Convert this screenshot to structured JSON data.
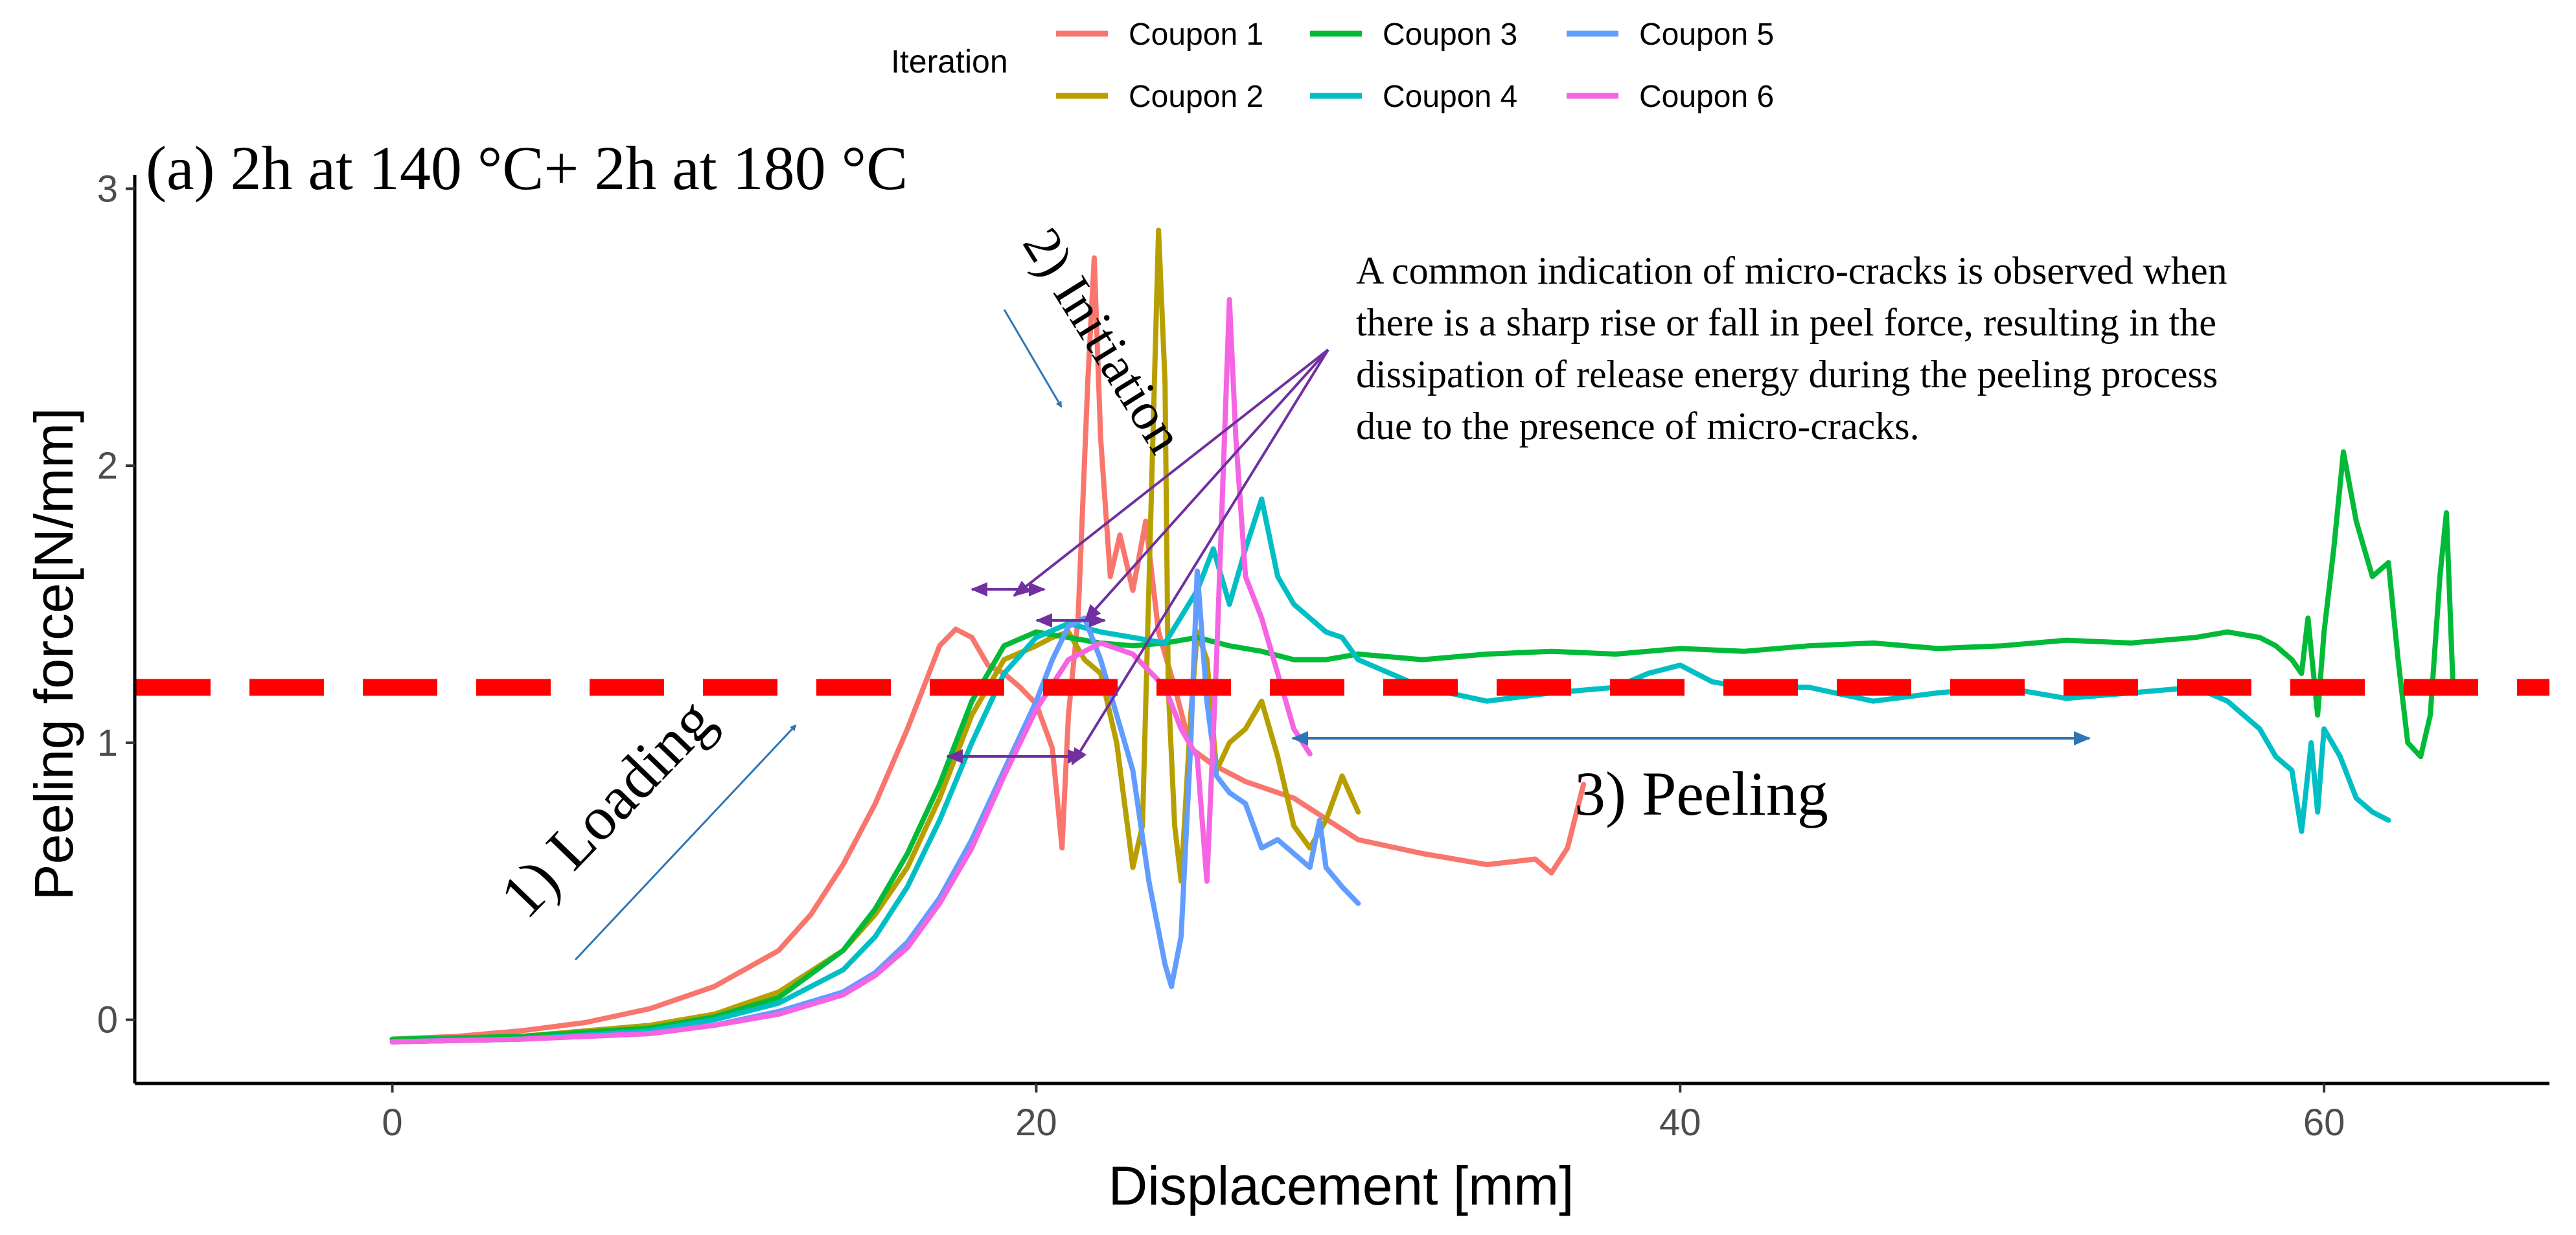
{
  "chart_data": {
    "type": "line",
    "panel_title": "(a) 2h at 140 °C+ 2h at 180 °C",
    "xlabel": "Displacement [mm]",
    "ylabel": "Peeling force[N/mm]",
    "xlim": [
      -8,
      67
    ],
    "ylim": [
      -0.23,
      3.05
    ],
    "xticks": [
      0,
      20,
      40,
      60
    ],
    "yticks": [
      0,
      1,
      2,
      3
    ],
    "grid": false,
    "legend": {
      "title": "Iteration",
      "position": "top",
      "entries": [
        "Coupon 1",
        "Coupon 2",
        "Coupon 3",
        "Coupon 4",
        "Coupon 5",
        "Coupon 6"
      ]
    },
    "reference_line": {
      "y": 1.2,
      "style": "dashed",
      "color": "#ff0000"
    },
    "series": [
      {
        "name": "Coupon 1",
        "color": "#F8766D",
        "x": [
          0,
          2,
          4,
          6,
          8,
          10,
          12,
          13,
          14,
          15,
          16,
          16.5,
          17,
          17.5,
          18,
          18.5,
          19,
          19.5,
          20,
          20.5,
          20.8,
          21,
          21.3,
          21.6,
          21.8,
          22,
          22.3,
          22.6,
          23,
          23.4,
          23.8,
          24.3,
          24.8,
          25.5,
          26.5,
          28,
          30,
          32,
          34,
          35.5,
          36,
          36.5,
          37
        ],
        "y": [
          -0.07,
          -0.06,
          -0.04,
          -0.01,
          0.04,
          0.12,
          0.25,
          0.38,
          0.56,
          0.78,
          1.05,
          1.2,
          1.35,
          1.41,
          1.38,
          1.28,
          1.25,
          1.2,
          1.14,
          0.98,
          0.62,
          1.1,
          1.45,
          2.3,
          2.75,
          2.1,
          1.6,
          1.75,
          1.55,
          1.8,
          1.4,
          1.2,
          0.98,
          0.92,
          0.86,
          0.8,
          0.65,
          0.6,
          0.56,
          0.58,
          0.53,
          0.62,
          0.85
        ]
      },
      {
        "name": "Coupon 2",
        "color": "#B79F00",
        "x": [
          0,
          4,
          8,
          10,
          12,
          14,
          15,
          16,
          17,
          18,
          19,
          20,
          20.5,
          21,
          21.5,
          22,
          22.5,
          23,
          23.3,
          23.6,
          23.8,
          24,
          24.1,
          24.3,
          24.5,
          24.8,
          25,
          25.3,
          25.6,
          26,
          26.5,
          27,
          27.5,
          28,
          28.5,
          29,
          29.5,
          30
        ],
        "y": [
          -0.07,
          -0.06,
          -0.02,
          0.02,
          0.1,
          0.25,
          0.38,
          0.55,
          0.8,
          1.1,
          1.3,
          1.35,
          1.38,
          1.4,
          1.3,
          1.25,
          1.0,
          0.55,
          0.7,
          2.0,
          2.85,
          2.3,
          1.2,
          0.7,
          0.5,
          1.1,
          1.4,
          1.3,
          0.9,
          1.0,
          1.05,
          1.15,
          0.95,
          0.7,
          0.62,
          0.72,
          0.88,
          0.75
        ]
      },
      {
        "name": "Coupon 3",
        "color": "#00BA38",
        "x": [
          0,
          4,
          8,
          10,
          12,
          14,
          15,
          16,
          17,
          18,
          19,
          20,
          21,
          22,
          23,
          24,
          25,
          26,
          27,
          28,
          29,
          30,
          32,
          34,
          36,
          38,
          40,
          42,
          44,
          46,
          48,
          50,
          52,
          54,
          56,
          57,
          58,
          58.5,
          59,
          59.3,
          59.5,
          59.8,
          60,
          60.3,
          60.6,
          61,
          61.5,
          62,
          62.3,
          62.6,
          63,
          63.3,
          63.6,
          63.8,
          64
        ],
        "y": [
          -0.07,
          -0.06,
          -0.03,
          0.01,
          0.08,
          0.25,
          0.4,
          0.6,
          0.85,
          1.15,
          1.35,
          1.4,
          1.38,
          1.36,
          1.35,
          1.36,
          1.38,
          1.35,
          1.33,
          1.3,
          1.3,
          1.32,
          1.3,
          1.32,
          1.33,
          1.32,
          1.34,
          1.33,
          1.35,
          1.36,
          1.34,
          1.35,
          1.37,
          1.36,
          1.38,
          1.4,
          1.38,
          1.35,
          1.3,
          1.25,
          1.45,
          1.1,
          1.4,
          1.7,
          2.05,
          1.8,
          1.6,
          1.65,
          1.3,
          1.0,
          0.95,
          1.1,
          1.6,
          1.83,
          1.22
        ]
      },
      {
        "name": "Coupon 4",
        "color": "#00BFC4",
        "x": [
          0,
          4,
          8,
          10,
          12,
          14,
          15,
          16,
          17,
          18,
          19,
          20,
          21,
          22,
          23,
          24,
          25,
          25.5,
          26,
          26.5,
          27,
          27.5,
          28,
          28.5,
          29,
          29.5,
          30,
          31,
          32,
          34,
          36,
          38,
          39,
          40,
          41,
          42,
          44,
          46,
          48,
          50,
          52,
          54,
          56,
          57,
          58,
          58.5,
          59,
          59.3,
          59.6,
          59.8,
          60,
          60.5,
          61,
          61.5,
          62
        ],
        "y": [
          -0.08,
          -0.07,
          -0.04,
          0.0,
          0.06,
          0.18,
          0.3,
          0.48,
          0.72,
          1.0,
          1.25,
          1.38,
          1.43,
          1.4,
          1.38,
          1.36,
          1.55,
          1.7,
          1.5,
          1.7,
          1.88,
          1.6,
          1.5,
          1.45,
          1.4,
          1.38,
          1.3,
          1.25,
          1.2,
          1.15,
          1.18,
          1.2,
          1.25,
          1.28,
          1.22,
          1.2,
          1.2,
          1.15,
          1.18,
          1.2,
          1.16,
          1.18,
          1.2,
          1.15,
          1.05,
          0.95,
          0.9,
          0.68,
          1.0,
          0.75,
          1.05,
          0.95,
          0.8,
          0.75,
          0.72
        ]
      },
      {
        "name": "Coupon 5",
        "color": "#619CFF",
        "x": [
          0,
          4,
          8,
          10,
          12,
          14,
          15,
          16,
          17,
          18,
          19,
          20,
          20.5,
          21,
          21.5,
          22,
          22.5,
          23,
          23.5,
          24,
          24.2,
          24.5,
          24.8,
          25,
          25.3,
          25.6,
          26,
          26.5,
          27,
          27.5,
          28,
          28.5,
          28.8,
          29,
          29.5,
          30
        ],
        "y": [
          -0.08,
          -0.07,
          -0.05,
          -0.02,
          0.03,
          0.1,
          0.17,
          0.28,
          0.44,
          0.65,
          0.9,
          1.15,
          1.3,
          1.42,
          1.45,
          1.3,
          1.1,
          0.9,
          0.5,
          0.2,
          0.12,
          0.3,
          1.0,
          1.62,
          1.15,
          0.88,
          0.82,
          0.78,
          0.62,
          0.65,
          0.6,
          0.55,
          0.72,
          0.55,
          0.48,
          0.42
        ]
      },
      {
        "name": "Coupon 6",
        "color": "#F564E3",
        "x": [
          0,
          4,
          8,
          10,
          12,
          14,
          15,
          16,
          17,
          18,
          19,
          20,
          21,
          22,
          23,
          24,
          24.5,
          25,
          25.3,
          25.6,
          26,
          26.2,
          26.5,
          27,
          27.5,
          28,
          28.5
        ],
        "y": [
          -0.08,
          -0.07,
          -0.05,
          -0.02,
          0.02,
          0.09,
          0.16,
          0.26,
          0.42,
          0.62,
          0.88,
          1.12,
          1.3,
          1.36,
          1.32,
          1.2,
          1.05,
          0.95,
          0.5,
          1.3,
          2.6,
          2.1,
          1.6,
          1.45,
          1.25,
          1.05,
          0.96
        ]
      }
    ],
    "annotations": {
      "loading": "1) Loading",
      "initiation": "2) Initiation",
      "peeling": "3) Peeling",
      "note_lines": [
        "A common indication of micro-cracks is observed when",
        "there is a sharp rise or fall in peel force, resulting in the",
        "dissipation of release energy during the peeling process",
        "due to the presence of micro-cracks."
      ],
      "arrow_color": "#2E75B6",
      "callout_color": "#7030A0"
    }
  }
}
